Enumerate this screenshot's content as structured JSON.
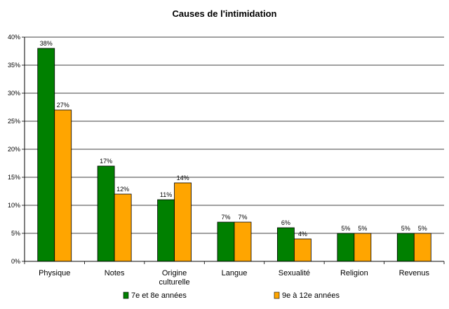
{
  "chart_data": {
    "type": "bar",
    "title": "Causes de l'intimidation",
    "categories": [
      [
        "Physique"
      ],
      [
        "Notes"
      ],
      [
        "Origine",
        "culturelle"
      ],
      [
        "Langue"
      ],
      [
        "Sexualité"
      ],
      [
        "Religion"
      ],
      [
        "Revenus"
      ]
    ],
    "series": [
      {
        "name": "7e et 8e années",
        "color": "#008000",
        "values": [
          38,
          17,
          11,
          7,
          6,
          5,
          5
        ],
        "labels": [
          "38%",
          "17%",
          "11%",
          "7%",
          "6%",
          "5%",
          "5%"
        ]
      },
      {
        "name": "9e à 12e années",
        "color": "#FFA500",
        "values": [
          27,
          12,
          14,
          7,
          4,
          5,
          5
        ],
        "labels": [
          "27%",
          "12%",
          "14%",
          "7%",
          "4%",
          "5%",
          "5%"
        ]
      }
    ],
    "ylim": [
      0,
      40
    ],
    "yticks": [
      0,
      5,
      10,
      15,
      20,
      25,
      30,
      35,
      40
    ],
    "ytick_labels": [
      "0%",
      "5%",
      "10%",
      "15%",
      "20%",
      "25%",
      "30%",
      "35%",
      "40%"
    ],
    "grid": true,
    "legend_position": "bottom",
    "bar_outline_color": "#000000",
    "grid_color": "#000000"
  }
}
